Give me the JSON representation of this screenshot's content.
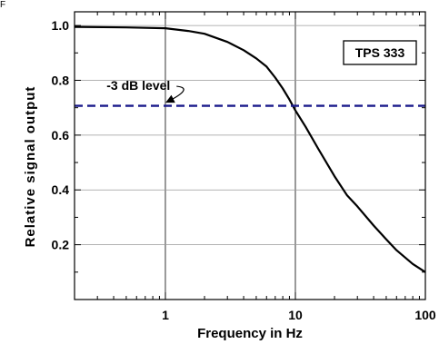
{
  "corner_text": "F",
  "chart_data": {
    "type": "line",
    "title": "",
    "xlabel": "Frequency in Hz",
    "ylabel": "Relative signal output",
    "x_scale": "log",
    "xlim": [
      0.2,
      100
    ],
    "ylim": [
      0.0,
      1.05
    ],
    "x_ticks": [
      1,
      10,
      100
    ],
    "x_tick_labels": [
      "1",
      "10",
      "100"
    ],
    "y_ticks": [
      0.2,
      0.4,
      0.6,
      0.8,
      1.0
    ],
    "y_tick_labels": [
      "0.2",
      "0.4",
      "0.6",
      "0.8",
      "1.0"
    ],
    "grid": true,
    "series": [
      {
        "style": "solid",
        "color": "#000000",
        "x": [
          0.2,
          0.5,
          1,
          1.5,
          2,
          3,
          4,
          5,
          6,
          7,
          8,
          9,
          10,
          12,
          15,
          20,
          25,
          30,
          40,
          50,
          60,
          80,
          100
        ],
        "y": [
          0.995,
          0.993,
          0.99,
          0.98,
          0.97,
          0.94,
          0.91,
          0.88,
          0.85,
          0.81,
          0.77,
          0.73,
          0.69,
          0.63,
          0.55,
          0.45,
          0.38,
          0.34,
          0.27,
          0.22,
          0.18,
          0.13,
          0.1
        ]
      },
      {
        "style": "dashed",
        "color": "#1a1a8c",
        "x": [
          0.2,
          100
        ],
        "y": [
          0.707,
          0.707
        ]
      }
    ],
    "annotations": [
      {
        "text": "-3 dB level",
        "x": 0.62,
        "y": 0.765,
        "arrow_to_x": 1.02,
        "arrow_to_y": 0.71
      }
    ],
    "legend_box": {
      "text": "TPS 333",
      "placement": "top-right"
    }
  }
}
